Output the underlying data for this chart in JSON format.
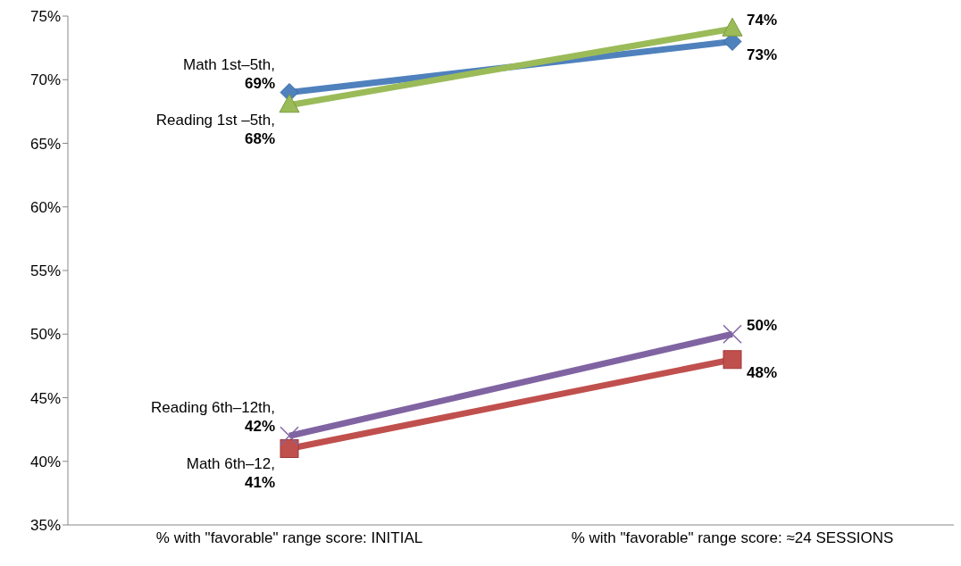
{
  "chart_data": {
    "type": "line",
    "categories": [
      "% with \"favorable\" range score: INITIAL",
      "% with \"favorable\" range score: ≈24 SESSIONS"
    ],
    "ylim": [
      35,
      75
    ],
    "yticks": [
      {
        "value": 35,
        "label": "35%"
      },
      {
        "value": 40,
        "label": "40%"
      },
      {
        "value": 45,
        "label": "45%"
      },
      {
        "value": 50,
        "label": "50%"
      },
      {
        "value": 55,
        "label": "55%"
      },
      {
        "value": 60,
        "label": "60%"
      },
      {
        "value": 65,
        "label": "65%"
      },
      {
        "value": 70,
        "label": "70%"
      },
      {
        "value": 75,
        "label": "75%"
      }
    ],
    "grid": false,
    "legend": false,
    "series": [
      {
        "name": "Math 1st–5th,",
        "color": "#4f81bd",
        "marker": "diamond",
        "values": [
          69,
          73
        ],
        "value_labels": [
          "69%",
          "73%"
        ]
      },
      {
        "name": "Reading 1st –5th,",
        "color": "#9bbb59",
        "marker": "triangle",
        "values": [
          68,
          74
        ],
        "value_labels": [
          "68%",
          "74%"
        ]
      },
      {
        "name": "Math 6th–12,",
        "color": "#c0504d",
        "marker": "square",
        "values": [
          41,
          48
        ],
        "value_labels": [
          "41%",
          "48%"
        ]
      },
      {
        "name": "Reading 6th–12th,",
        "color": "#8064a2",
        "marker": "cross",
        "values": [
          42,
          50
        ],
        "value_labels": [
          "42%",
          "50%"
        ]
      }
    ]
  }
}
